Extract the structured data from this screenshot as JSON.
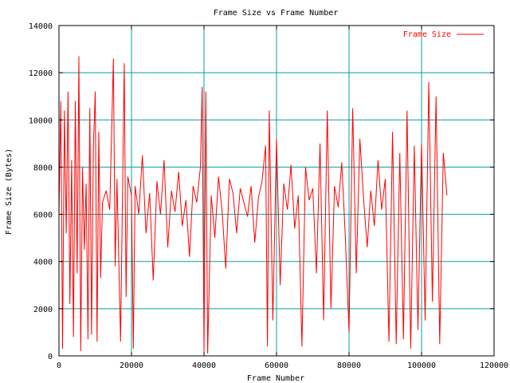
{
  "chart_data": {
    "type": "line",
    "title": "Frame Size vs Frame Number",
    "xlabel": "Frame Number",
    "ylabel": "Frame Size (Bytes)",
    "xlim": [
      0,
      120000
    ],
    "ylim": [
      0,
      14000
    ],
    "x_ticks": [
      0,
      20000,
      40000,
      60000,
      80000,
      100000,
      120000
    ],
    "y_ticks": [
      0,
      2000,
      4000,
      6000,
      8000,
      10000,
      12000,
      14000
    ],
    "grid": true,
    "grid_color": "#00a0a0",
    "legend_position": "top-right",
    "series": [
      {
        "name": "Frame Size",
        "color": "#ff0000",
        "x": [
          0,
          500,
          1000,
          1500,
          2000,
          2500,
          3000,
          3500,
          4000,
          4500,
          5000,
          5500,
          6000,
          6500,
          7000,
          7500,
          8000,
          8500,
          9000,
          9500,
          10000,
          10500,
          11000,
          11500,
          12000,
          13000,
          14000,
          15000,
          15500,
          16000,
          17000,
          18000,
          18500,
          19000,
          20000,
          20500,
          21000,
          22000,
          23000,
          24000,
          25000,
          26000,
          27000,
          28000,
          29000,
          30000,
          31000,
          32000,
          33000,
          34000,
          35000,
          36000,
          37000,
          38000,
          39000,
          39500,
          40000,
          40500,
          41000,
          42000,
          43000,
          44000,
          45000,
          46000,
          47000,
          48000,
          49000,
          50000,
          51000,
          52000,
          53000,
          54000,
          55000,
          56000,
          57000,
          57500,
          58000,
          59000,
          60000,
          61000,
          62000,
          63000,
          64000,
          65000,
          66000,
          67000,
          68000,
          69000,
          70000,
          71000,
          72000,
          73000,
          74000,
          75000,
          76000,
          77000,
          78000,
          79000,
          80000,
          81000,
          82000,
          83000,
          84000,
          85000,
          86000,
          87000,
          88000,
          89000,
          90000,
          91000,
          92000,
          93000,
          94000,
          95000,
          96000,
          97000,
          98000,
          99000,
          100000,
          101000,
          102000,
          103000,
          104000,
          105000,
          106000,
          107000
        ],
        "y": [
          6000,
          10800,
          300,
          10400,
          5200,
          11200,
          2200,
          8300,
          800,
          10800,
          3500,
          12700,
          200,
          8000,
          4500,
          7300,
          700,
          10500,
          900,
          8800,
          11200,
          600,
          9500,
          3300,
          6500,
          7000,
          6200,
          12600,
          3800,
          7500,
          600,
          12400,
          2500,
          7600,
          6800,
          300,
          7200,
          6000,
          8500,
          5200,
          6900,
          3200,
          7400,
          6000,
          8300,
          4600,
          7000,
          6100,
          7800,
          5500,
          6600,
          4200,
          7200,
          6500,
          8000,
          11400,
          200,
          11200,
          100,
          6800,
          5000,
          7600,
          6100,
          3700,
          7500,
          6900,
          5200,
          7100,
          6500,
          5900,
          7200,
          4800,
          6700,
          7400,
          8900,
          400,
          10400,
          1500,
          9200,
          3000,
          7300,
          6200,
          8100,
          5400,
          6800,
          400,
          8000,
          6600,
          7100,
          3500,
          9000,
          1500,
          10400,
          2000,
          7200,
          6300,
          8200,
          5000,
          1000,
          10500,
          3500,
          9200,
          6700,
          4600,
          7000,
          5500,
          8300,
          6200,
          7500,
          600,
          9500,
          500,
          8600,
          700,
          10400,
          300,
          8900,
          1100,
          9000,
          1500,
          11600,
          2300,
          11000,
          500,
          8600,
          6800
        ]
      }
    ]
  }
}
